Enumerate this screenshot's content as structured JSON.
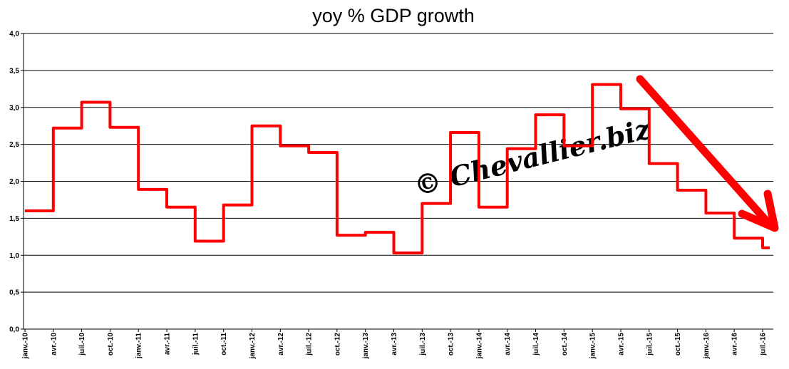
{
  "chart_data": {
    "type": "line",
    "title": "yoy % GDP growth",
    "xlabel": "",
    "ylabel": "",
    "ylim": [
      0,
      4
    ],
    "y_ticks": [
      "0,0",
      "0,5",
      "1,0",
      "1,5",
      "2,0",
      "2,5",
      "3,0",
      "3,5",
      "4,0"
    ],
    "y_tick_values": [
      0,
      0.5,
      1,
      1.5,
      2,
      2.5,
      3,
      3.5,
      4
    ],
    "x_tick_labels": [
      "janv.-10",
      "avr.-10",
      "juil.-10",
      "oct.-10",
      "janv.-11",
      "avr.-11",
      "juil.-11",
      "oct.-11",
      "janv.-12",
      "avr.-12",
      "juil.-12",
      "oct.-12",
      "janv.-13",
      "avr.-13",
      "juil.-13",
      "oct.-13",
      "janv.-14",
      "avr.-14",
      "juil.-14",
      "oct.-14",
      "janv.-15",
      "avr.-15",
      "juil.-15",
      "oct.-15",
      "janv.-16",
      "avr.-16",
      "juil.-16"
    ],
    "grid": "horizontal",
    "legend": "none",
    "series": [
      {
        "color": "#ff0000",
        "step": true,
        "x": [
          "janv.-10",
          "avr.-10",
          "juil.-10",
          "oct.-10",
          "janv.-11",
          "avr.-11",
          "juil.-11",
          "oct.-11",
          "janv.-12",
          "avr.-12",
          "juil.-12",
          "oct.-12",
          "janv.-13",
          "avr.-13",
          "juil.-13",
          "oct.-13",
          "janv.-14",
          "avr.-14",
          "juil.-14",
          "oct.-14",
          "janv.-15",
          "avr.-15",
          "juil.-15",
          "oct.-15",
          "janv.-16",
          "avr.-16",
          "juil.-16"
        ],
        "values": [
          1.6,
          2.72,
          3.07,
          2.73,
          1.89,
          1.65,
          1.19,
          1.68,
          2.75,
          2.48,
          2.39,
          1.27,
          1.31,
          1.03,
          1.7,
          2.66,
          1.65,
          2.44,
          2.9,
          2.48,
          3.31,
          2.98,
          2.24,
          1.88,
          1.57,
          1.23,
          1.1
        ]
      }
    ],
    "annotations": {
      "watermark": "© Chevallier.biz",
      "arrow": {
        "color": "#ff0000",
        "direction": "down-right"
      }
    }
  }
}
